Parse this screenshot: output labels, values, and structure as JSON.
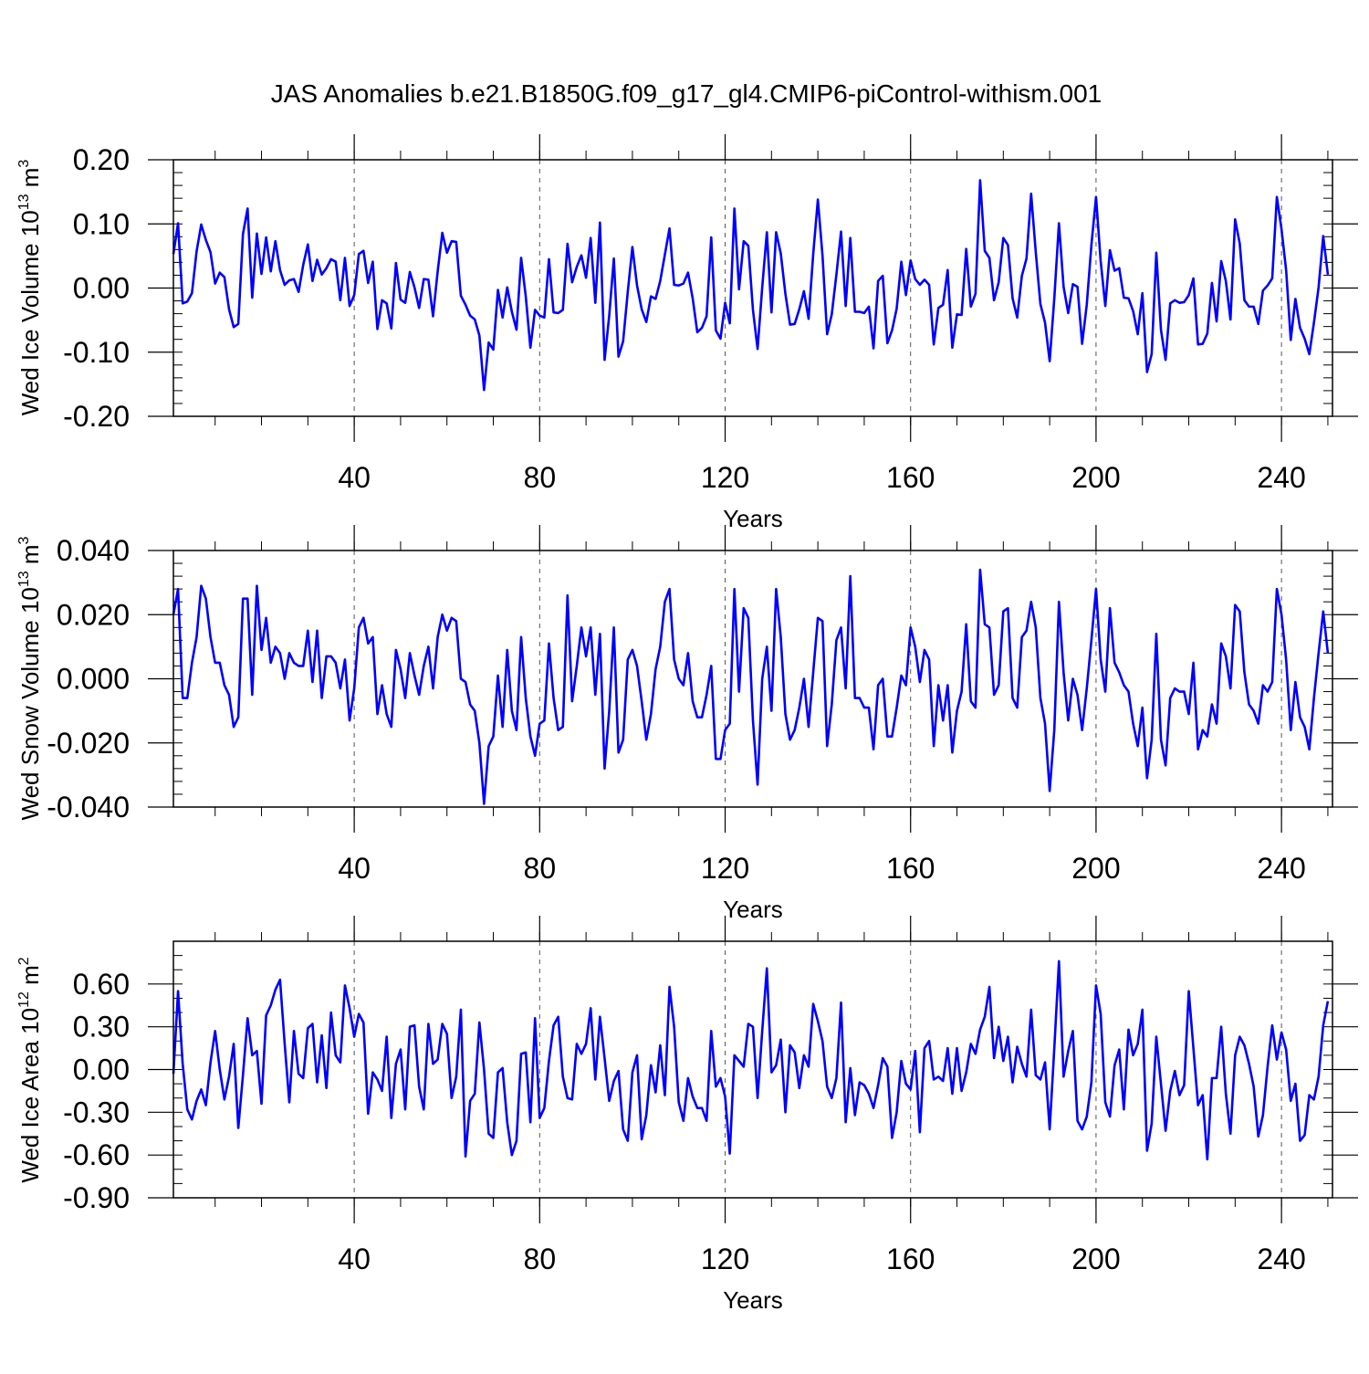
{
  "figure": {
    "title": "JAS Anomalies b.e21.B1850G.f09_g17_gl4.CMIP6-piControl-withism.001",
    "line_color": "#0000ff"
  },
  "chart_data": [
    {
      "type": "line",
      "ylabel": "Wed Ice Volume 10",
      "ylabel_exp": "13",
      "ylabel_unit": " m",
      "ylabel_unit_exp": "3",
      "xlabel": "Years",
      "xlim": [
        1,
        251
      ],
      "ylim": [
        -0.2,
        0.2
      ],
      "yticks": [
        -0.2,
        -0.1,
        0.0,
        0.1,
        0.2
      ],
      "ytick_labels": [
        "-0.20",
        "-0.10",
        "0.00",
        "0.10",
        "0.20"
      ],
      "yminor_step": 0.02,
      "xticks": [
        40,
        80,
        120,
        160,
        200,
        240
      ],
      "xtick_labels": [
        "40",
        "80",
        "120",
        "160",
        "200",
        "240"
      ],
      "xminor_step": 10,
      "grid_x": [
        40,
        80,
        120,
        160,
        200,
        240
      ],
      "series": [
        {
          "name": "Wed Ice Volume",
          "x_start": 1,
          "values": [
            0.053,
            0.101,
            -0.024,
            -0.021,
            -0.008,
            0.057,
            0.099,
            0.075,
            0.056,
            0.007,
            0.024,
            0.017,
            -0.033,
            -0.061,
            -0.056,
            0.084,
            0.124,
            -0.015,
            0.085,
            0.022,
            0.079,
            0.026,
            0.073,
            0.028,
            0.005,
            0.012,
            0.014,
            -0.006,
            0.036,
            0.068,
            0.011,
            0.044,
            0.021,
            0.031,
            0.045,
            0.041,
            -0.019,
            0.047,
            -0.028,
            -0.011,
            0.053,
            0.058,
            0.008,
            0.041,
            -0.064,
            -0.019,
            -0.024,
            -0.063,
            0.039,
            -0.018,
            -0.023,
            0.025,
            0.001,
            -0.031,
            0.014,
            0.013,
            -0.044,
            0.026,
            0.086,
            0.055,
            0.073,
            0.072,
            -0.012,
            -0.026,
            -0.043,
            -0.049,
            -0.074,
            -0.159,
            -0.085,
            -0.096,
            -0.003,
            -0.046,
            0.001,
            -0.037,
            -0.065,
            0.047,
            -0.013,
            -0.093,
            -0.034,
            -0.043,
            -0.046,
            0.045,
            -0.038,
            -0.039,
            -0.034,
            0.069,
            0.009,
            0.033,
            0.051,
            0.016,
            0.078,
            -0.023,
            0.102,
            -0.112,
            -0.043,
            0.046,
            -0.107,
            -0.083,
            -0.006,
            0.064,
            0.004,
            -0.033,
            -0.053,
            -0.013,
            -0.017,
            0.011,
            0.052,
            0.093,
            0.005,
            0.004,
            0.007,
            0.024,
            -0.016,
            -0.069,
            -0.062,
            -0.044,
            0.079,
            -0.066,
            -0.079,
            -0.023,
            -0.055,
            0.124,
            -0.002,
            0.073,
            0.066,
            -0.034,
            -0.095,
            0.001,
            0.087,
            -0.038,
            0.087,
            0.054,
            -0.009,
            -0.057,
            -0.056,
            -0.033,
            -0.005,
            -0.048,
            0.053,
            0.138,
            0.051,
            -0.072,
            -0.041,
            0.021,
            0.088,
            -0.028,
            0.078,
            -0.037,
            -0.037,
            -0.039,
            -0.029,
            -0.094,
            0.011,
            0.019,
            -0.086,
            -0.066,
            -0.032,
            0.041,
            -0.011,
            0.043,
            0.014,
            0.005,
            0.013,
            0.005,
            -0.088,
            -0.031,
            -0.026,
            0.028,
            -0.093,
            -0.041,
            -0.042,
            0.061,
            -0.029,
            -0.009,
            0.168,
            0.058,
            0.047,
            -0.019,
            0.009,
            0.078,
            0.067,
            -0.016,
            -0.046,
            0.019,
            0.046,
            0.147,
            0.056,
            -0.025,
            -0.054,
            -0.114,
            -0.016,
            0.101,
            0.002,
            -0.039,
            0.006,
            0.002,
            -0.087,
            -0.026,
            0.067,
            0.142,
            0.042,
            -0.028,
            0.059,
            0.027,
            0.031,
            -0.015,
            -0.016,
            -0.036,
            -0.072,
            -0.008,
            -0.131,
            -0.103,
            0.055,
            -0.065,
            -0.112,
            -0.024,
            -0.019,
            -0.023,
            -0.022,
            -0.011,
            0.015,
            -0.088,
            -0.087,
            -0.071,
            0.008,
            -0.052,
            0.042,
            0.011,
            -0.049,
            0.107,
            0.069,
            -0.019,
            -0.029,
            -0.029,
            -0.056,
            -0.004,
            0.004,
            0.015,
            0.142,
            0.092,
            0.028,
            -0.081,
            -0.017,
            -0.062,
            -0.079,
            -0.103,
            -0.054,
            0.001,
            0.081,
            0.021
          ]
        }
      ]
    },
    {
      "type": "line",
      "ylabel": "Wed Snow Volume 10",
      "ylabel_exp": "13",
      "ylabel_unit": " m",
      "ylabel_unit_exp": "3",
      "xlabel": "Years",
      "xlim": [
        1,
        251
      ],
      "ylim": [
        -0.04,
        0.04
      ],
      "yticks": [
        -0.04,
        -0.02,
        0.0,
        0.02,
        0.04
      ],
      "ytick_labels": [
        "-0.040",
        "-0.020",
        "0.000",
        "0.020",
        "0.040"
      ],
      "yminor_step": 0.004,
      "xticks": [
        40,
        80,
        120,
        160,
        200,
        240
      ],
      "xtick_labels": [
        "40",
        "80",
        "120",
        "160",
        "200",
        "240"
      ],
      "xminor_step": 10,
      "grid_x": [
        40,
        80,
        120,
        160,
        200,
        240
      ],
      "series": [
        {
          "name": "Wed Snow Volume",
          "x_start": 1,
          "values": [
            0.02,
            0.028,
            -0.006,
            -0.006,
            0.005,
            0.013,
            0.029,
            0.025,
            0.013,
            0.005,
            0.005,
            -0.002,
            -0.005,
            -0.015,
            -0.012,
            0.025,
            0.025,
            -0.005,
            0.029,
            0.009,
            0.019,
            0.005,
            0.01,
            0.008,
            0.0,
            0.008,
            0.005,
            0.004,
            0.004,
            0.015,
            -0.001,
            0.015,
            -0.006,
            0.007,
            0.007,
            0.005,
            -0.003,
            0.006,
            -0.013,
            -0.003,
            0.016,
            0.019,
            0.011,
            0.013,
            -0.011,
            -0.002,
            -0.011,
            -0.015,
            0.009,
            0.003,
            -0.006,
            0.008,
            0.001,
            -0.005,
            0.004,
            0.01,
            -0.003,
            0.013,
            0.02,
            0.015,
            0.019,
            0.018,
            0.0,
            -0.001,
            -0.008,
            -0.01,
            -0.02,
            -0.039,
            -0.021,
            -0.018,
            0.001,
            -0.015,
            0.009,
            -0.01,
            -0.016,
            0.013,
            -0.006,
            -0.018,
            -0.024,
            -0.014,
            -0.013,
            0.011,
            -0.006,
            -0.016,
            -0.015,
            0.026,
            -0.007,
            0.004,
            0.016,
            0.007,
            0.016,
            -0.005,
            0.014,
            -0.028,
            -0.01,
            0.016,
            -0.023,
            -0.019,
            0.006,
            0.009,
            0.004,
            -0.007,
            -0.019,
            -0.011,
            0.003,
            0.01,
            0.024,
            0.028,
            0.006,
            0.0,
            -0.002,
            0.008,
            -0.007,
            -0.012,
            -0.012,
            -0.005,
            0.004,
            -0.025,
            -0.025,
            -0.016,
            -0.014,
            0.028,
            -0.004,
            0.022,
            0.019,
            -0.013,
            -0.033,
            0.0,
            0.01,
            -0.01,
            0.028,
            0.013,
            -0.011,
            -0.019,
            -0.016,
            -0.009,
            0.0,
            -0.015,
            0.002,
            0.019,
            0.018,
            -0.021,
            -0.008,
            0.012,
            0.016,
            -0.003,
            0.032,
            -0.006,
            -0.006,
            -0.009,
            -0.009,
            -0.022,
            -0.002,
            0.0,
            -0.018,
            -0.018,
            -0.009,
            0.001,
            -0.002,
            0.016,
            0.01,
            -0.001,
            0.009,
            0.006,
            -0.021,
            -0.002,
            -0.013,
            -0.002,
            -0.023,
            -0.01,
            -0.004,
            0.017,
            -0.007,
            -0.009,
            0.034,
            0.017,
            0.016,
            -0.005,
            -0.002,
            0.021,
            0.022,
            -0.006,
            -0.009,
            0.013,
            0.015,
            0.024,
            0.016,
            -0.006,
            -0.014,
            -0.035,
            -0.016,
            0.024,
            0.002,
            -0.013,
            0.0,
            -0.005,
            -0.016,
            -0.003,
            0.012,
            0.028,
            0.006,
            -0.004,
            0.022,
            0.005,
            0.002,
            -0.002,
            -0.004,
            -0.014,
            -0.021,
            -0.009,
            -0.031,
            -0.019,
            0.014,
            -0.019,
            -0.027,
            -0.006,
            -0.003,
            -0.004,
            -0.004,
            -0.011,
            0.005,
            -0.022,
            -0.016,
            -0.018,
            -0.008,
            -0.014,
            0.011,
            0.007,
            -0.003,
            0.023,
            0.021,
            0.002,
            -0.008,
            -0.01,
            -0.014,
            -0.002,
            -0.004,
            -0.001,
            0.028,
            0.02,
            0.006,
            -0.016,
            -0.001,
            -0.012,
            -0.015,
            -0.022,
            -0.006,
            0.008,
            0.021,
            0.008
          ]
        }
      ]
    },
    {
      "type": "line",
      "ylabel": "Wed Ice Area 10",
      "ylabel_exp": "12",
      "ylabel_unit": " m",
      "ylabel_unit_exp": "2",
      "xlabel": "Years",
      "xlim": [
        1,
        251
      ],
      "ylim": [
        -0.9,
        0.9
      ],
      "yticks": [
        -0.9,
        -0.6,
        -0.3,
        0.0,
        0.3,
        0.6
      ],
      "ytick_labels": [
        "-0.90",
        "-0.60",
        "-0.30",
        "0.00",
        "0.30",
        "0.60"
      ],
      "yminor_step": 0.1,
      "xticks": [
        40,
        80,
        120,
        160,
        200,
        240
      ],
      "xtick_labels": [
        "40",
        "80",
        "120",
        "160",
        "200",
        "240"
      ],
      "xminor_step": 10,
      "grid_x": [
        40,
        80,
        120,
        160,
        200,
        240
      ],
      "series": [
        {
          "name": "Wed Ice Area",
          "x_start": 1,
          "values": [
            -0.03,
            0.55,
            0.04,
            -0.28,
            -0.35,
            -0.22,
            -0.14,
            -0.25,
            0.05,
            0.27,
            0.0,
            -0.21,
            -0.05,
            0.18,
            -0.41,
            -0.04,
            0.36,
            0.1,
            0.13,
            -0.24,
            0.38,
            0.45,
            0.56,
            0.63,
            0.18,
            -0.23,
            0.27,
            -0.03,
            -0.06,
            0.29,
            0.32,
            -0.09,
            0.24,
            -0.13,
            0.4,
            0.1,
            0.05,
            0.59,
            0.43,
            0.23,
            0.39,
            0.33,
            -0.31,
            -0.02,
            -0.07,
            -0.15,
            0.23,
            -0.34,
            0.04,
            0.14,
            -0.28,
            0.3,
            0.31,
            -0.12,
            -0.28,
            0.32,
            0.04,
            0.07,
            0.32,
            0.25,
            -0.2,
            -0.05,
            0.42,
            -0.61,
            -0.22,
            -0.17,
            0.33,
            0.0,
            -0.45,
            -0.48,
            -0.02,
            0.01,
            -0.37,
            -0.6,
            -0.5,
            0.11,
            0.12,
            -0.37,
            0.36,
            -0.34,
            -0.27,
            0.06,
            0.31,
            0.37,
            -0.05,
            -0.2,
            -0.21,
            0.18,
            0.11,
            0.18,
            0.43,
            -0.07,
            0.37,
            0.08,
            -0.22,
            -0.08,
            -0.01,
            -0.42,
            -0.5,
            -0.02,
            0.1,
            -0.49,
            -0.32,
            0.03,
            -0.16,
            0.17,
            -0.18,
            0.58,
            0.3,
            -0.23,
            -0.36,
            -0.06,
            -0.19,
            -0.27,
            -0.27,
            -0.36,
            0.27,
            -0.12,
            -0.06,
            -0.19,
            -0.59,
            0.1,
            0.06,
            0.02,
            0.32,
            0.3,
            -0.2,
            0.27,
            0.71,
            -0.02,
            0.03,
            0.21,
            -0.3,
            0.17,
            0.12,
            -0.13,
            0.1,
            0.02,
            0.46,
            0.34,
            0.2,
            -0.12,
            -0.2,
            -0.06,
            0.47,
            -0.37,
            0.01,
            -0.32,
            -0.09,
            -0.11,
            -0.17,
            -0.27,
            -0.11,
            0.08,
            0.02,
            -0.48,
            -0.3,
            0.06,
            -0.1,
            -0.14,
            0.13,
            -0.44,
            0.15,
            0.2,
            -0.07,
            -0.05,
            -0.08,
            0.15,
            -0.17,
            0.15,
            -0.15,
            -0.02,
            0.18,
            0.11,
            0.28,
            0.37,
            0.58,
            0.08,
            0.3,
            0.06,
            0.23,
            -0.09,
            0.16,
            0.04,
            -0.05,
            0.42,
            -0.04,
            -0.07,
            0.05,
            -0.42,
            0.15,
            0.76,
            -0.05,
            0.13,
            0.27,
            -0.36,
            -0.42,
            -0.33,
            -0.09,
            0.59,
            0.39,
            -0.23,
            -0.33,
            0.03,
            0.14,
            -0.28,
            0.28,
            0.1,
            0.18,
            0.42,
            -0.57,
            -0.38,
            0.23,
            -0.1,
            -0.43,
            -0.15,
            -0.01,
            -0.18,
            -0.11,
            0.55,
            0.15,
            -0.25,
            -0.18,
            -0.63,
            -0.06,
            -0.06,
            0.3,
            -0.17,
            -0.45,
            0.1,
            0.23,
            0.17,
            0.04,
            -0.12,
            -0.47,
            -0.32,
            0.02,
            0.31,
            0.07,
            0.26,
            0.14,
            -0.22,
            -0.1,
            -0.5,
            -0.46,
            -0.18,
            -0.21,
            -0.05,
            0.31,
            0.48
          ]
        }
      ]
    }
  ]
}
